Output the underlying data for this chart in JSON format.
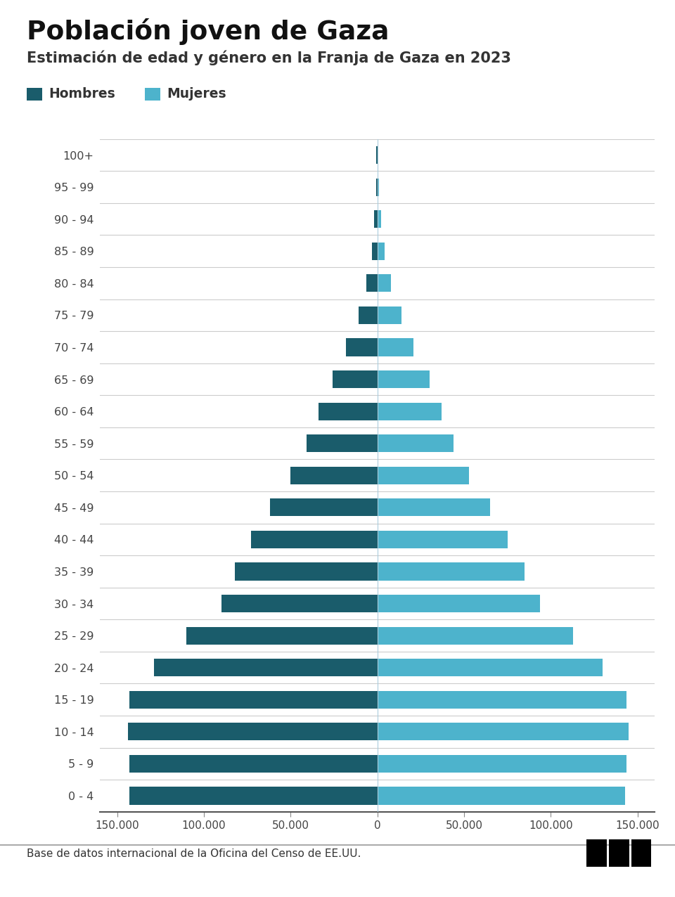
{
  "title": "Población joven de Gaza",
  "subtitle": "Estimación de edad y género en la Franja de Gaza en 2023",
  "legend_male": "Hombres",
  "legend_female": "Mujeres",
  "source": "Base de datos internacional de la Oficina del Censo de EE.UU.",
  "color_male": "#1a5c6b",
  "color_female": "#4db3cc",
  "background_color": "#ffffff",
  "age_groups": [
    "0 - 4",
    "5 - 9",
    "10 - 14",
    "15 - 19",
    "20 - 24",
    "25 - 29",
    "30 - 34",
    "35 - 39",
    "40 - 44",
    "45 - 49",
    "50 - 54",
    "55 - 59",
    "60 - 64",
    "65 - 69",
    "70 - 74",
    "75 - 79",
    "80 - 84",
    "85 - 89",
    "90 - 94",
    "95 - 99",
    "100+"
  ],
  "males": [
    143000,
    143000,
    144000,
    143000,
    129000,
    110000,
    90000,
    82000,
    73000,
    62000,
    50000,
    41000,
    34000,
    26000,
    18000,
    11000,
    6500,
    3200,
    1800,
    800,
    500
  ],
  "females": [
    143000,
    143500,
    145000,
    143500,
    130000,
    113000,
    94000,
    85000,
    75000,
    65000,
    53000,
    44000,
    37000,
    30000,
    21000,
    14000,
    8000,
    4000,
    2200,
    1100,
    700
  ],
  "xlim": 160000,
  "xticks": [
    -150000,
    -100000,
    -50000,
    0,
    50000,
    100000,
    150000
  ],
  "xtick_labels": [
    "150.000",
    "100.000",
    "50.000",
    "0",
    "50.000",
    "100.000",
    "150.000"
  ]
}
